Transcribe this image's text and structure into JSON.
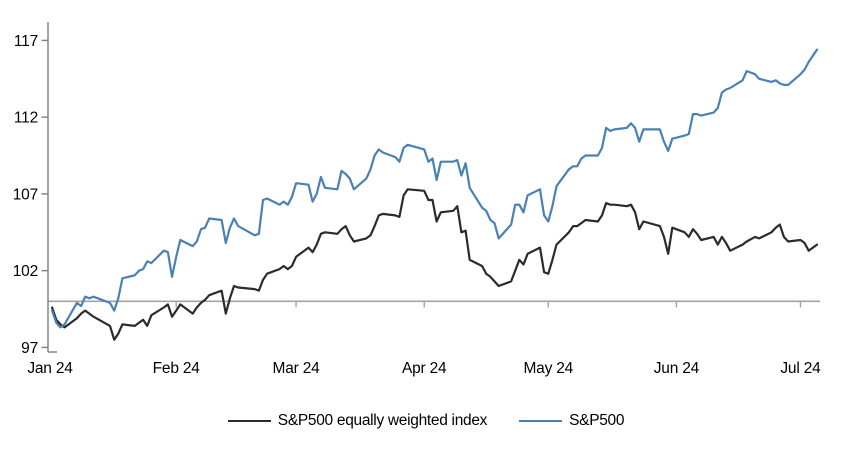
{
  "chart_data": {
    "type": "line",
    "title": "",
    "x_unit": "date",
    "grid": false,
    "legend_position": "bottom",
    "baseline": 100,
    "ylim": [
      96.7,
      118.2
    ],
    "xlim_doy": [
      1,
      187
    ],
    "y_ticks": [
      97,
      102,
      107,
      112,
      117
    ],
    "x_ticks": [
      {
        "label": "Jan 24",
        "doy": 1
      },
      {
        "label": "Feb 24",
        "doy": 32
      },
      {
        "label": "Mar 24",
        "doy": 61
      },
      {
        "label": "Apr 24",
        "doy": 92
      },
      {
        "label": "May 24",
        "doy": 122
      },
      {
        "label": "Jun 24",
        "doy": 153
      },
      {
        "label": "Jul 24",
        "doy": 183
      }
    ],
    "colors": {
      "axis": "#7f7f7f",
      "baseline": "#a3a3a3",
      "text": "#000000",
      "background": "#ffffff"
    },
    "dates": [
      "2024-01-02",
      "2024-01-03",
      "2024-01-04",
      "2024-01-05",
      "2024-01-08",
      "2024-01-09",
      "2024-01-10",
      "2024-01-11",
      "2024-01-12",
      "2024-01-16",
      "2024-01-17",
      "2024-01-18",
      "2024-01-19",
      "2024-01-22",
      "2024-01-23",
      "2024-01-24",
      "2024-01-25",
      "2024-01-26",
      "2024-01-29",
      "2024-01-30",
      "2024-01-31",
      "2024-02-01",
      "2024-02-02",
      "2024-02-05",
      "2024-02-06",
      "2024-02-07",
      "2024-02-08",
      "2024-02-09",
      "2024-02-12",
      "2024-02-13",
      "2024-02-14",
      "2024-02-15",
      "2024-02-16",
      "2024-02-20",
      "2024-02-21",
      "2024-02-22",
      "2024-02-23",
      "2024-02-26",
      "2024-02-27",
      "2024-02-28",
      "2024-02-29",
      "2024-03-01",
      "2024-03-04",
      "2024-03-05",
      "2024-03-06",
      "2024-03-07",
      "2024-03-08",
      "2024-03-11",
      "2024-03-12",
      "2024-03-13",
      "2024-03-14",
      "2024-03-15",
      "2024-03-18",
      "2024-03-19",
      "2024-03-20",
      "2024-03-21",
      "2024-03-22",
      "2024-03-25",
      "2024-03-26",
      "2024-03-27",
      "2024-03-28",
      "2024-04-01",
      "2024-04-02",
      "2024-04-03",
      "2024-04-04",
      "2024-04-05",
      "2024-04-08",
      "2024-04-09",
      "2024-04-10",
      "2024-04-11",
      "2024-04-12",
      "2024-04-15",
      "2024-04-16",
      "2024-04-17",
      "2024-04-18",
      "2024-04-19",
      "2024-04-22",
      "2024-04-23",
      "2024-04-24",
      "2024-04-25",
      "2024-04-26",
      "2024-04-29",
      "2024-04-30",
      "2024-05-01",
      "2024-05-02",
      "2024-05-03",
      "2024-05-06",
      "2024-05-07",
      "2024-05-08",
      "2024-05-09",
      "2024-05-10",
      "2024-05-13",
      "2024-05-14",
      "2024-05-15",
      "2024-05-16",
      "2024-05-17",
      "2024-05-20",
      "2024-05-21",
      "2024-05-22",
      "2024-05-23",
      "2024-05-24",
      "2024-05-28",
      "2024-05-29",
      "2024-05-30",
      "2024-05-31",
      "2024-06-03",
      "2024-06-04",
      "2024-06-05",
      "2024-06-06",
      "2024-06-07",
      "2024-06-10",
      "2024-06-11",
      "2024-06-12",
      "2024-06-13",
      "2024-06-14",
      "2024-06-17",
      "2024-06-18",
      "2024-06-20",
      "2024-06-21",
      "2024-06-24",
      "2024-06-25",
      "2024-06-26",
      "2024-06-27",
      "2024-06-28",
      "2024-07-01",
      "2024-07-02",
      "2024-07-03",
      "2024-07-05"
    ],
    "series": [
      {
        "name": "S&P500 equally weighted index",
        "color": "#2b2b2b",
        "values": [
          99.6,
          98.8,
          98.5,
          98.3,
          98.9,
          99.2,
          99.4,
          99.2,
          99.0,
          98.4,
          97.5,
          97.9,
          98.5,
          98.4,
          98.6,
          98.8,
          98.4,
          99.1,
          99.6,
          99.8,
          99.0,
          99.4,
          99.8,
          99.2,
          99.6,
          99.9,
          100.1,
          100.4,
          100.7,
          99.2,
          100.2,
          101.0,
          100.9,
          100.8,
          100.7,
          101.4,
          101.8,
          102.1,
          102.3,
          102.1,
          102.3,
          102.9,
          103.5,
          103.2,
          103.7,
          104.4,
          104.5,
          104.4,
          104.7,
          104.9,
          104.3,
          103.9,
          104.1,
          104.3,
          104.9,
          105.6,
          105.7,
          105.6,
          105.5,
          106.9,
          107.3,
          107.2,
          106.6,
          106.6,
          105.2,
          105.8,
          105.9,
          106.2,
          104.5,
          104.6,
          102.7,
          102.3,
          101.8,
          101.6,
          101.3,
          101.0,
          101.3,
          102.0,
          102.7,
          102.4,
          103.1,
          103.5,
          101.9,
          101.8,
          102.7,
          103.7,
          104.5,
          104.9,
          104.9,
          105.1,
          105.3,
          105.2,
          105.6,
          106.4,
          106.3,
          106.3,
          106.2,
          106.3,
          105.8,
          104.7,
          105.2,
          104.9,
          104.2,
          103.1,
          104.8,
          104.5,
          104.2,
          104.7,
          104.4,
          104.0,
          104.2,
          103.7,
          104.2,
          103.8,
          103.3,
          103.7,
          103.9,
          104.2,
          104.1,
          104.5,
          104.8,
          105.0,
          104.2,
          103.9,
          104.0,
          103.8,
          103.3,
          103.7
        ]
      },
      {
        "name": "S&P500",
        "color": "#4a81b5",
        "values": [
          99.4,
          98.6,
          98.3,
          98.5,
          99.9,
          99.7,
          100.3,
          100.2,
          100.3,
          99.9,
          99.4,
          100.2,
          101.5,
          101.7,
          102.0,
          102.1,
          102.6,
          102.5,
          103.3,
          103.2,
          101.6,
          102.9,
          104.0,
          103.6,
          103.9,
          104.7,
          104.8,
          105.4,
          105.3,
          103.8,
          104.8,
          105.4,
          104.9,
          104.3,
          104.4,
          106.6,
          106.7,
          106.3,
          106.5,
          106.3,
          106.8,
          107.7,
          107.6,
          106.5,
          107.0,
          108.1,
          107.4,
          107.3,
          108.5,
          108.3,
          108.0,
          107.3,
          108.0,
          108.6,
          109.5,
          109.9,
          109.7,
          109.4,
          109.1,
          110.0,
          110.2,
          109.9,
          109.1,
          109.3,
          107.9,
          109.1,
          109.1,
          109.2,
          108.2,
          109.0,
          107.4,
          106.1,
          105.9,
          105.3,
          105.1,
          104.1,
          105.0,
          106.3,
          106.3,
          105.8,
          106.9,
          107.3,
          105.6,
          105.2,
          106.2,
          107.5,
          108.6,
          108.8,
          108.8,
          109.3,
          109.5,
          109.5,
          110.0,
          111.3,
          111.1,
          111.2,
          111.3,
          111.6,
          111.3,
          110.4,
          111.2,
          111.2,
          110.4,
          109.8,
          110.6,
          110.8,
          110.9,
          112.2,
          112.2,
          112.1,
          112.3,
          112.6,
          113.6,
          113.8,
          113.9,
          114.4,
          115.0,
          114.8,
          114.5,
          114.3,
          114.4,
          114.2,
          114.1,
          114.1,
          114.8,
          115.1,
          115.6,
          116.4
        ]
      }
    ]
  },
  "legend": {
    "items": [
      {
        "label": "S&P500 equally weighted index"
      },
      {
        "label": "S&P500"
      }
    ]
  }
}
